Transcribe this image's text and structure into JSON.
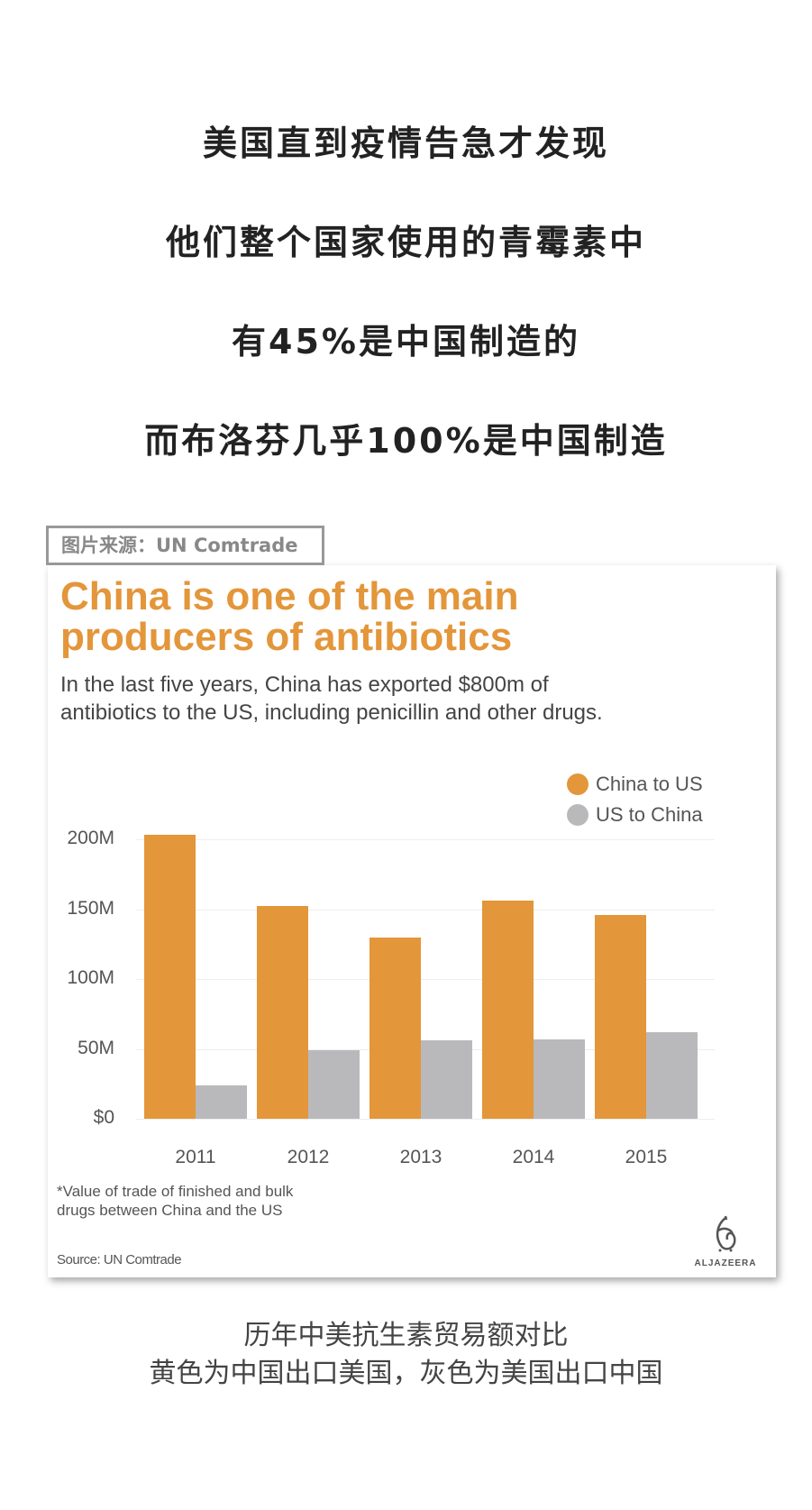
{
  "intro_lines": [
    "美国直到疫情告急才发现",
    "他们整个国家使用的青霉素中",
    "有45%是中国制造的",
    "而布洛芬几乎100%是中国制造"
  ],
  "source_tag": "图片来源：UN Comtrade",
  "chart_data": {
    "type": "bar",
    "title_lines": [
      "China is one of the main",
      "producers of antibiotics"
    ],
    "subtitle_lines": [
      "In the last five years, China has exported $800m of",
      "antibiotics to the US, including penicillin and other drugs."
    ],
    "categories": [
      "2011",
      "2012",
      "2013",
      "2014",
      "2015"
    ],
    "series": [
      {
        "name": "China to US",
        "color": "#e3963a",
        "values": [
          203,
          152,
          130,
          156,
          146
        ]
      },
      {
        "name": "US to China",
        "color": "#b9b9bb",
        "values": [
          24,
          49,
          56,
          57,
          62
        ]
      }
    ],
    "y_ticks": [
      {
        "value": 0,
        "label": "$0"
      },
      {
        "value": 50,
        "label": "50M"
      },
      {
        "value": 100,
        "label": "100M"
      },
      {
        "value": 150,
        "label": "150M"
      },
      {
        "value": 200,
        "label": "200M"
      }
    ],
    "ylim": [
      0,
      200
    ],
    "grid": true,
    "legend_position": "top-right",
    "footnote_lines": [
      "*Value of trade of finished and bulk",
      "drugs between China and the US"
    ],
    "source": "Source: UN Comtrade",
    "logo_text": "ALJAZEERA"
  },
  "caption_lines": [
    "历年中美抗生素贸易额对比",
    "黄色为中国出口美国，灰色为美国出口中国"
  ]
}
